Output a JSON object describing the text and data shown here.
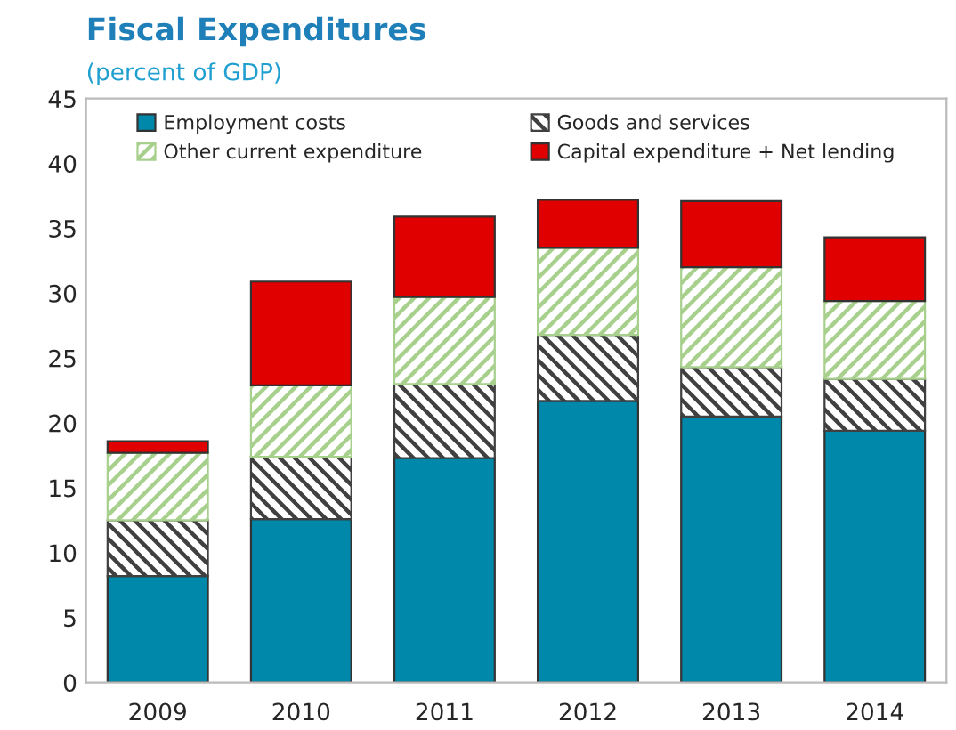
{
  "chart_data": {
    "type": "bar",
    "title": "Fiscal Expenditures",
    "subtitle": "(percent of GDP)",
    "categories": [
      "2009",
      "2010",
      "2011",
      "2012",
      "2013",
      "2014"
    ],
    "stacked": true,
    "series": [
      {
        "name": "Employment costs",
        "color": "#0088aa",
        "values": [
          8.2,
          12.6,
          17.3,
          21.7,
          20.5,
          19.4
        ]
      },
      {
        "name": "Goods and services",
        "color": "#404040",
        "values": [
          4.3,
          4.8,
          5.7,
          5.1,
          3.8,
          4.0
        ]
      },
      {
        "name": "Other current expenditure",
        "color": "#a8d08d",
        "values": [
          5.2,
          5.5,
          6.7,
          6.7,
          7.7,
          6.0
        ]
      },
      {
        "name": "Capital expenditure + Net lending",
        "color": "#e00000",
        "values": [
          0.9,
          8.0,
          6.2,
          3.7,
          5.1,
          4.9
        ]
      }
    ],
    "ylim": [
      0,
      45
    ],
    "yticks": [
      0,
      5,
      10,
      15,
      20,
      25,
      30,
      35,
      40,
      45
    ],
    "grid": false,
    "legend": "top"
  }
}
